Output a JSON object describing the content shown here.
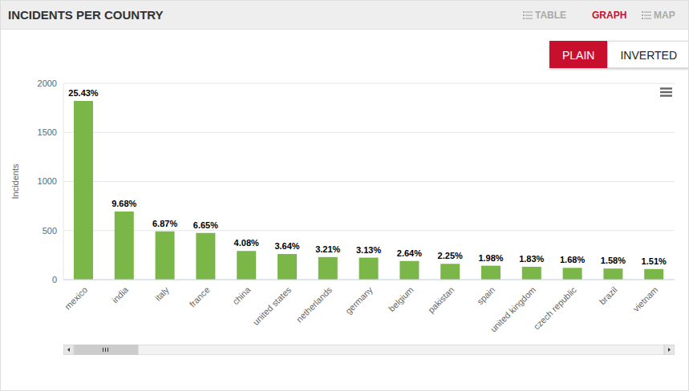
{
  "chart_data": {
    "type": "bar",
    "title": "INCIDENTS PER COUNTRY",
    "y_label": "Incidents",
    "categories": [
      "mexico",
      "india",
      "italy",
      "france",
      "china",
      "united states",
      "netherlands",
      "germany",
      "belgium",
      "pakistan",
      "spain",
      "united kingdom",
      "czech republic",
      "brazil",
      "vietnam"
    ],
    "values": [
      1820,
      693,
      492,
      476,
      292,
      261,
      230,
      224,
      189,
      161,
      142,
      131,
      120,
      113,
      108
    ],
    "percent_labels": [
      "25.43%",
      "9.68%",
      "6.87%",
      "6.65%",
      "4.08%",
      "3.64%",
      "3.21%",
      "3.13%",
      "2.64%",
      "2.25%",
      "1.98%",
      "1.83%",
      "1.68%",
      "1.58%",
      "1.51%"
    ],
    "color": "#7ab648",
    "ylim": [
      0,
      2000
    ],
    "yticks": [
      0,
      500,
      1000,
      1500,
      2000
    ],
    "grid": true
  },
  "tabs": [
    "TABLE",
    "GRAPH",
    "MAP"
  ],
  "buttons": [
    "PLAIN",
    "INVERTED"
  ]
}
